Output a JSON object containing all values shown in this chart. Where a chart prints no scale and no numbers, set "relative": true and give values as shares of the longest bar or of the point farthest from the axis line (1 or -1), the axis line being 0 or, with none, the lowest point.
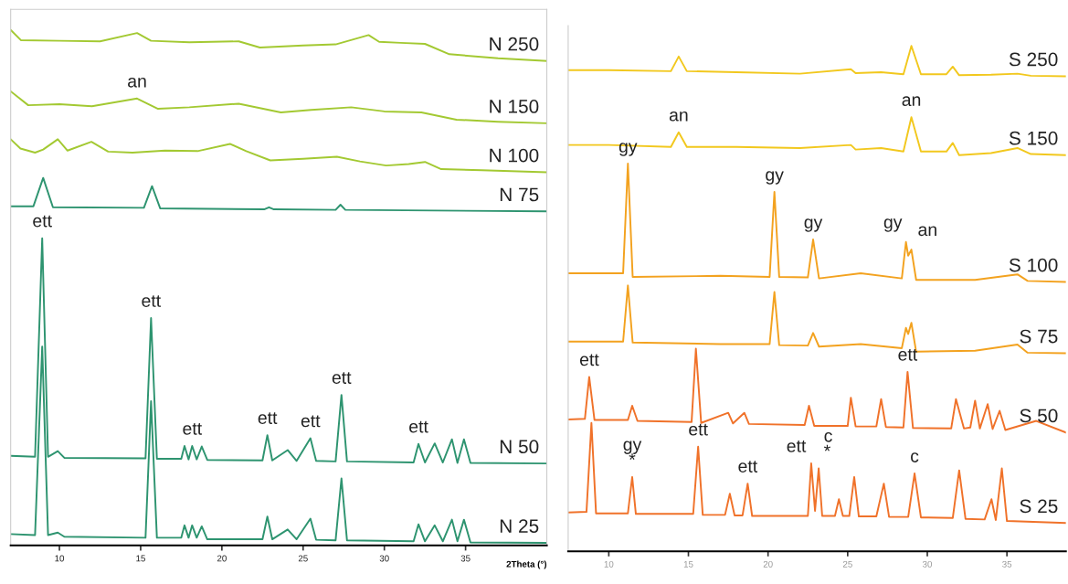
{
  "chart_data": [
    {
      "type": "line",
      "relative": true,
      "xlabel": "2Theta (°)",
      "xlim": [
        7,
        40
      ],
      "xticks": [
        10,
        15,
        20,
        25,
        30,
        35
      ],
      "tick_labels": "x",
      "grid": false,
      "legend": false,
      "series": [
        {
          "name": "N 250",
          "color": "#a3c932",
          "x": [
            7.0,
            7.64,
            10.0,
            12.5,
            14.78,
            15.64,
            18.0,
            21.04,
            22.34,
            25.0,
            27.0,
            29.03,
            29.68,
            31.0,
            32.5,
            34.0,
            37.0,
            40.0
          ],
          "values": [
            1.0,
            0.98,
            0.979,
            0.978,
            0.994,
            0.979,
            0.976,
            0.978,
            0.966,
            0.97,
            0.972,
            0.99,
            0.977,
            0.975,
            0.973,
            0.953,
            0.945,
            0.94
          ]
        },
        {
          "name": "N 150",
          "color": "#a3c932",
          "x": [
            7.0,
            8.08,
            10.0,
            12.0,
            14.78,
            16.07,
            18.0,
            21.04,
            23.63,
            25.5,
            27.96,
            30.0,
            32.28,
            34.44,
            37.0,
            40.0
          ],
          "values": [
            0.881,
            0.854,
            0.856,
            0.852,
            0.867,
            0.847,
            0.85,
            0.857,
            0.84,
            0.845,
            0.85,
            0.842,
            0.84,
            0.826,
            0.822,
            0.819
          ]
        },
        {
          "name": "N 100",
          "color": "#a3c932",
          "x": [
            7.0,
            7.6,
            8.5,
            9.0,
            9.9,
            10.5,
            11.97,
            13.0,
            14.5,
            16.5,
            18.5,
            20.5,
            21.5,
            22.98,
            25.0,
            27.08,
            28.5,
            30.11,
            31.5,
            32.5,
            33.5,
            36.0,
            40.0
          ],
          "values": [
            0.788,
            0.77,
            0.762,
            0.768,
            0.788,
            0.766,
            0.783,
            0.764,
            0.762,
            0.766,
            0.765,
            0.779,
            0.765,
            0.747,
            0.75,
            0.754,
            0.745,
            0.737,
            0.74,
            0.744,
            0.73,
            0.728,
            0.724
          ]
        },
        {
          "name": "N 75",
          "color": "#2e9470",
          "x": [
            7.0,
            8.4,
            9.0,
            9.6,
            15.2,
            15.7,
            16.2,
            22.6,
            22.9,
            23.2,
            27.0,
            27.3,
            27.6,
            40.0
          ],
          "values": [
            0.658,
            0.658,
            0.713,
            0.656,
            0.655,
            0.697,
            0.654,
            0.652,
            0.656,
            0.652,
            0.651,
            0.661,
            0.651,
            0.648
          ]
        },
        {
          "name": "N 50",
          "color": "#2e9470",
          "x": [
            7.0,
            8.5,
            8.94,
            9.3,
            9.9,
            10.3,
            15.3,
            15.64,
            16.0,
            17.5,
            17.7,
            17.95,
            18.17,
            18.45,
            18.76,
            19.1,
            22.5,
            22.8,
            23.1,
            24.05,
            24.6,
            25.45,
            25.8,
            27.0,
            27.36,
            27.7,
            31.8,
            32.1,
            32.5,
            33.1,
            33.6,
            34.16,
            34.5,
            34.9,
            35.3,
            40.0
          ],
          "values": [
            0.174,
            0.172,
            0.596,
            0.172,
            0.183,
            0.17,
            0.169,
            0.441,
            0.168,
            0.168,
            0.193,
            0.167,
            0.193,
            0.167,
            0.192,
            0.166,
            0.165,
            0.214,
            0.165,
            0.185,
            0.164,
            0.208,
            0.164,
            0.163,
            0.292,
            0.163,
            0.161,
            0.197,
            0.161,
            0.198,
            0.161,
            0.206,
            0.16,
            0.206,
            0.16,
            0.159
          ]
        },
        {
          "name": "N 25",
          "color": "#2e9470",
          "x": [
            7.0,
            8.5,
            8.94,
            9.3,
            9.9,
            10.3,
            15.3,
            15.64,
            16.0,
            17.5,
            17.7,
            17.95,
            18.17,
            18.45,
            18.76,
            19.1,
            22.5,
            22.8,
            23.1,
            24.05,
            24.6,
            25.45,
            25.8,
            27.0,
            27.36,
            27.7,
            31.8,
            32.1,
            32.5,
            33.1,
            33.6,
            34.16,
            34.5,
            34.9,
            35.3,
            40.0
          ],
          "values": [
            0.022,
            0.02,
            0.386,
            0.02,
            0.025,
            0.017,
            0.015,
            0.28,
            0.015,
            0.015,
            0.039,
            0.015,
            0.039,
            0.015,
            0.037,
            0.012,
            0.012,
            0.056,
            0.012,
            0.031,
            0.012,
            0.052,
            0.011,
            0.01,
            0.13,
            0.01,
            0.008,
            0.041,
            0.008,
            0.039,
            0.008,
            0.05,
            0.008,
            0.05,
            0.006,
            0.005
          ]
        }
      ],
      "annotations": [
        {
          "text": "an",
          "x": 14.78,
          "y": 0.867
        },
        {
          "text": "ett",
          "x": 8.94,
          "y": 0.596
        },
        {
          "text": "ett",
          "x": 15.64,
          "y": 0.441
        },
        {
          "text": "ett",
          "x": 18.17,
          "y": 0.193
        },
        {
          "text": "ett",
          "x": 22.8,
          "y": 0.214
        },
        {
          "text": "ett",
          "x": 25.45,
          "y": 0.208
        },
        {
          "text": "ett",
          "x": 27.36,
          "y": 0.292
        },
        {
          "text": "ett",
          "x": 32.1,
          "y": 0.197
        }
      ]
    },
    {
      "type": "line",
      "relative": true,
      "xlim": [
        7.45,
        38.7
      ],
      "xticks": [
        10,
        15,
        20,
        25,
        30,
        35
      ],
      "tick_labels": "x",
      "grid": false,
      "legend": false,
      "series": [
        {
          "name": "S 250",
          "color": "#f2c81e",
          "x": [
            7.45,
            10.0,
            13.9,
            14.39,
            14.9,
            18.0,
            22.0,
            25.2,
            25.5,
            27.1,
            28.5,
            29.0,
            29.6,
            31.2,
            31.6,
            32.0,
            34.0,
            35.66,
            36.5,
            38.7
          ],
          "values": [
            0.952,
            0.952,
            0.95,
            0.979,
            0.95,
            0.948,
            0.945,
            0.954,
            0.946,
            0.948,
            0.944,
            1.0,
            0.944,
            0.944,
            0.959,
            0.942,
            0.943,
            0.945,
            0.941,
            0.94
          ]
        },
        {
          "name": "S 150",
          "color": "#f2c81e",
          "x": [
            7.45,
            10.0,
            13.9,
            14.39,
            14.9,
            18.0,
            22.0,
            25.2,
            25.5,
            27.1,
            28.5,
            29.0,
            29.6,
            31.2,
            31.6,
            32.0,
            34.0,
            35.66,
            36.5,
            38.7
          ],
          "values": [
            0.804,
            0.804,
            0.8,
            0.829,
            0.8,
            0.8,
            0.798,
            0.804,
            0.795,
            0.798,
            0.791,
            0.859,
            0.791,
            0.791,
            0.808,
            0.784,
            0.788,
            0.798,
            0.786,
            0.784
          ]
        },
        {
          "name": "S 100",
          "color": "#f3a21f",
          "x": [
            7.45,
            10.9,
            11.2,
            11.5,
            17.0,
            20.1,
            20.4,
            20.7,
            22.5,
            22.83,
            23.2,
            25.82,
            28.4,
            28.66,
            28.8,
            29.0,
            29.3,
            33.0,
            35.66,
            36.3,
            38.7
          ],
          "values": [
            0.55,
            0.55,
            0.767,
            0.543,
            0.545,
            0.543,
            0.711,
            0.543,
            0.542,
            0.617,
            0.54,
            0.55,
            0.54,
            0.612,
            0.585,
            0.597,
            0.537,
            0.537,
            0.548,
            0.535,
            0.533
          ]
        },
        {
          "name": "S 75",
          "color": "#f3a21f",
          "x": [
            7.45,
            10.9,
            11.2,
            11.5,
            17.0,
            20.1,
            20.4,
            20.7,
            22.5,
            22.83,
            23.2,
            25.82,
            28.4,
            28.66,
            28.8,
            29.0,
            29.3,
            33.0,
            35.66,
            36.3,
            38.7
          ],
          "values": [
            0.415,
            0.415,
            0.526,
            0.413,
            0.41,
            0.41,
            0.513,
            0.408,
            0.407,
            0.432,
            0.405,
            0.41,
            0.402,
            0.442,
            0.43,
            0.452,
            0.395,
            0.397,
            0.409,
            0.393,
            0.392
          ]
        },
        {
          "name": "S 50",
          "color": "#f0722a",
          "x": [
            7.45,
            8.5,
            8.77,
            9.1,
            11.2,
            11.47,
            11.8,
            15.2,
            15.47,
            15.8,
            17.5,
            17.8,
            18.51,
            18.8,
            22.3,
            22.57,
            22.9,
            25.0,
            25.2,
            25.5,
            26.8,
            27.1,
            27.4,
            28.5,
            28.76,
            29.1,
            31.5,
            31.8,
            32.3,
            32.7,
            33.0,
            33.3,
            33.79,
            34.1,
            34.54,
            34.9,
            36.84,
            38.7
          ],
          "values": [
            0.261,
            0.262,
            0.345,
            0.26,
            0.26,
            0.288,
            0.258,
            0.256,
            0.401,
            0.254,
            0.274,
            0.253,
            0.274,
            0.252,
            0.25,
            0.288,
            0.248,
            0.248,
            0.304,
            0.247,
            0.247,
            0.301,
            0.246,
            0.245,
            0.355,
            0.244,
            0.243,
            0.301,
            0.243,
            0.245,
            0.298,
            0.243,
            0.291,
            0.242,
            0.278,
            0.24,
            0.258,
            0.235
          ]
        },
        {
          "name": "S 25",
          "color": "#f0722a",
          "x": [
            7.45,
            8.6,
            8.91,
            9.2,
            11.2,
            11.47,
            11.7,
            15.3,
            15.61,
            15.9,
            17.3,
            17.6,
            17.9,
            18.4,
            18.72,
            19.0,
            22.5,
            22.71,
            22.95,
            23.18,
            23.4,
            24.2,
            24.45,
            24.7,
            25.1,
            25.41,
            25.7,
            26.8,
            27.27,
            27.6,
            28.8,
            29.2,
            29.6,
            31.6,
            32.0,
            32.4,
            33.6,
            34.03,
            34.3,
            34.68,
            35.0,
            38.7
          ],
          "values": [
            0.077,
            0.078,
            0.254,
            0.075,
            0.075,
            0.147,
            0.074,
            0.074,
            0.207,
            0.072,
            0.072,
            0.114,
            0.071,
            0.071,
            0.134,
            0.07,
            0.07,
            0.174,
            0.08,
            0.164,
            0.07,
            0.07,
            0.103,
            0.07,
            0.07,
            0.147,
            0.069,
            0.069,
            0.134,
            0.068,
            0.068,
            0.154,
            0.067,
            0.066,
            0.16,
            0.064,
            0.063,
            0.103,
            0.062,
            0.164,
            0.06,
            0.056
          ]
        }
      ],
      "annotations": [
        {
          "text": "an",
          "x": 14.39,
          "y": 0.829
        },
        {
          "text": "an",
          "x": 29.0,
          "y": 0.859
        },
        {
          "text": "gy",
          "x": 11.2,
          "y": 0.767
        },
        {
          "text": "gy",
          "x": 20.4,
          "y": 0.711
        },
        {
          "text": "gy",
          "x": 22.83,
          "y": 0.617
        },
        {
          "text": "gy",
          "x": 28.66,
          "y": 0.612
        },
        {
          "text": "an",
          "x": 29.0,
          "y": 0.597
        },
        {
          "text": "ett",
          "x": 8.77,
          "y": 0.345
        },
        {
          "text": "ett",
          "x": 28.76,
          "y": 0.355
        },
        {
          "text": "gy\n*",
          "x": 11.47,
          "y": 0.147
        },
        {
          "text": "ett",
          "x": 15.61,
          "y": 0.207
        },
        {
          "text": "ett",
          "x": 18.72,
          "y": 0.134
        },
        {
          "text": "ett",
          "x": 22.71,
          "y": 0.174
        },
        {
          "text": "c\n*",
          "x": 23.18,
          "y": 0.164
        },
        {
          "text": "c",
          "x": 29.2,
          "y": 0.154
        }
      ]
    }
  ]
}
